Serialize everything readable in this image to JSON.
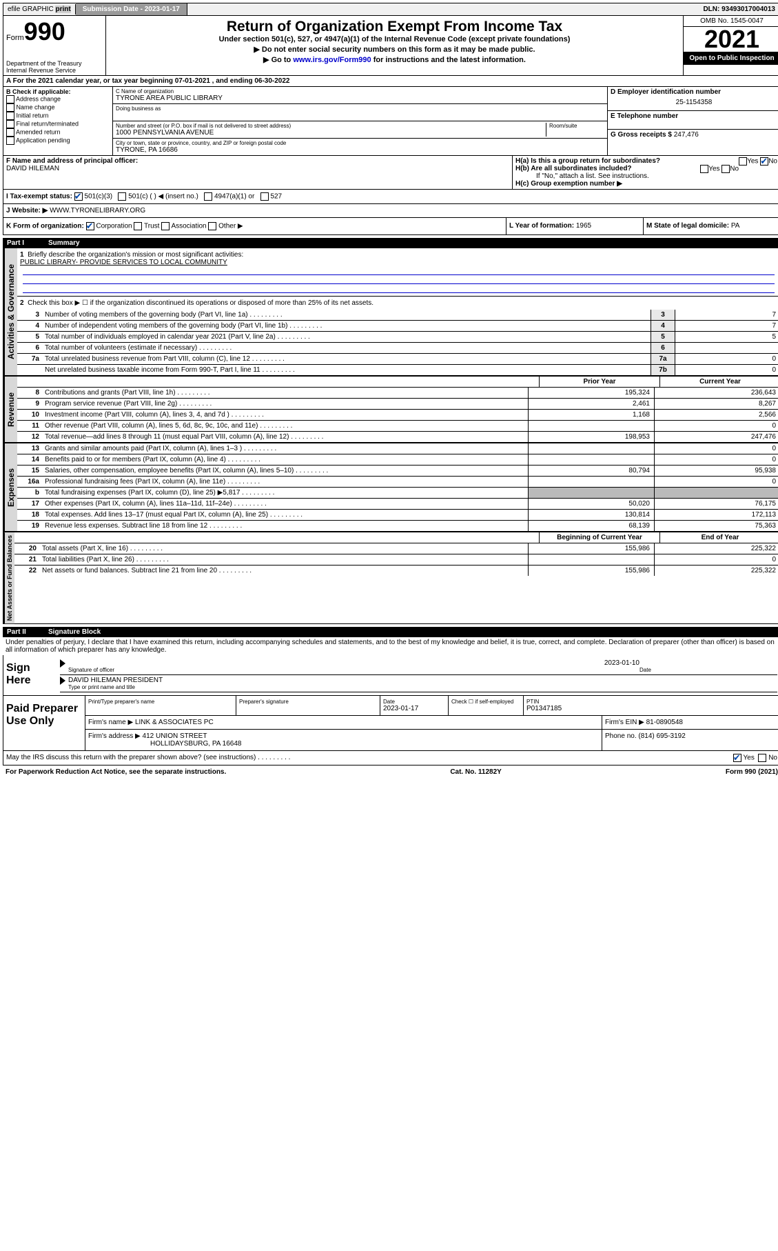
{
  "top": {
    "efile": "efile GRAPHIC",
    "print": "print",
    "sub_label": "Submission Date - ",
    "sub_date": "2023-01-17",
    "dln_label": "DLN: ",
    "dln": "93493017004013"
  },
  "header": {
    "form_small": "Form",
    "form_big": "990",
    "dept": "Department of the Treasury",
    "irs": "Internal Revenue Service",
    "title": "Return of Organization Exempt From Income Tax",
    "sub": "Under section 501(c), 527, or 4947(a)(1) of the Internal Revenue Code (except private foundations)",
    "instr1": "▶ Do not enter social security numbers on this form as it may be made public.",
    "instr2_pre": "▶ Go to ",
    "instr2_link": "www.irs.gov/Form990",
    "instr2_post": " for instructions and the latest information.",
    "omb": "OMB No. 1545-0047",
    "year": "2021",
    "open": "Open to Public Inspection"
  },
  "period": {
    "a": "A For the 2021 calendar year, or tax year beginning ",
    "begin": "07-01-2021",
    "mid": " , and ending ",
    "end": "06-30-2022"
  },
  "b": {
    "header": "B Check if applicable:",
    "opts": [
      "Address change",
      "Name change",
      "Initial return",
      "Final return/terminated",
      "Amended return",
      "Application pending"
    ]
  },
  "c": {
    "name_label": "C Name of organization",
    "name": "TYRONE AREA PUBLIC LIBRARY",
    "dba_label": "Doing business as",
    "addr_label": "Number and street (or P.O. box if mail is not delivered to street address)",
    "room_label": "Room/suite",
    "addr": "1000 PENNSYLVANIA AVENUE",
    "city_label": "City or town, state or province, country, and ZIP or foreign postal code",
    "city": "TYRONE, PA  16686"
  },
  "d": {
    "ein_label": "D Employer identification number",
    "ein": "25-1154358",
    "tel_label": "E Telephone number",
    "gross_label": "G Gross receipts $ ",
    "gross": "247,476"
  },
  "f": {
    "label": "F Name and address of principal officer:",
    "name": "DAVID HILEMAN"
  },
  "h": {
    "a": "H(a)  Is this a group return for subordinates?",
    "b": "H(b)  Are all subordinates included?",
    "b_note": "If \"No,\" attach a list. See instructions.",
    "c": "H(c)  Group exemption number ▶",
    "yes": "Yes",
    "no": "No"
  },
  "i": {
    "label": "I    Tax-exempt status:",
    "o1": "501(c)(3)",
    "o2": "501(c) (  ) ◀ (insert no.)",
    "o3": "4947(a)(1) or",
    "o4": "527"
  },
  "j": {
    "label": "J    Website: ▶  ",
    "val": "WWW.TYRONELIBRARY.ORG"
  },
  "k": {
    "label": "K Form of organization:",
    "o1": "Corporation",
    "o2": "Trust",
    "o3": "Association",
    "o4": "Other ▶"
  },
  "l": {
    "label": "L Year of formation: ",
    "val": "1965"
  },
  "m": {
    "label": "M State of legal domicile: ",
    "val": "PA"
  },
  "parts": {
    "p1": "Part I",
    "p1_title": "Summary",
    "p2": "Part II",
    "p2_title": "Signature Block"
  },
  "summary": {
    "q1": "Briefly describe the organization's mission or most significant activities:",
    "q1_val": "PUBLIC LIBRARY- PROVIDE SERVICES TO LOCAL COMMUNITY",
    "q2": "Check this box ▶ ☐  if the organization discontinued its operations or disposed of more than 25% of its net assets.",
    "rows_gov": [
      {
        "n": "3",
        "t": "Number of voting members of the governing body (Part VI, line 1a)",
        "box": "3",
        "v": "7"
      },
      {
        "n": "4",
        "t": "Number of independent voting members of the governing body (Part VI, line 1b)",
        "box": "4",
        "v": "7"
      },
      {
        "n": "5",
        "t": "Total number of individuals employed in calendar year 2021 (Part V, line 2a)",
        "box": "5",
        "v": "5"
      },
      {
        "n": "6",
        "t": "Total number of volunteers (estimate if necessary)",
        "box": "6",
        "v": ""
      },
      {
        "n": "7a",
        "t": "Total unrelated business revenue from Part VIII, column (C), line 12",
        "box": "7a",
        "v": "0"
      },
      {
        "n": "",
        "t": "Net unrelated business taxable income from Form 990-T, Part I, line 11",
        "box": "7b",
        "v": "0"
      }
    ],
    "prior": "Prior Year",
    "current": "Current Year",
    "rev_rows": [
      {
        "n": "8",
        "t": "Contributions and grants (Part VIII, line 1h)",
        "p": "195,324",
        "c": "236,643"
      },
      {
        "n": "9",
        "t": "Program service revenue (Part VIII, line 2g)",
        "p": "2,461",
        "c": "8,267"
      },
      {
        "n": "10",
        "t": "Investment income (Part VIII, column (A), lines 3, 4, and 7d )",
        "p": "1,168",
        "c": "2,566"
      },
      {
        "n": "11",
        "t": "Other revenue (Part VIII, column (A), lines 5, 6d, 8c, 9c, 10c, and 11e)",
        "p": "",
        "c": "0"
      },
      {
        "n": "12",
        "t": "Total revenue—add lines 8 through 11 (must equal Part VIII, column (A), line 12)",
        "p": "198,953",
        "c": "247,476"
      }
    ],
    "exp_rows": [
      {
        "n": "13",
        "t": "Grants and similar amounts paid (Part IX, column (A), lines 1–3 )",
        "p": "",
        "c": "0"
      },
      {
        "n": "14",
        "t": "Benefits paid to or for members (Part IX, column (A), line 4)",
        "p": "",
        "c": "0"
      },
      {
        "n": "15",
        "t": "Salaries, other compensation, employee benefits (Part IX, column (A), lines 5–10)",
        "p": "80,794",
        "c": "95,938"
      },
      {
        "n": "16a",
        "t": "Professional fundraising fees (Part IX, column (A), line 11e)",
        "p": "",
        "c": "0"
      },
      {
        "n": "b",
        "t": "Total fundraising expenses (Part IX, column (D), line 25) ▶5,817",
        "p": "GRAY",
        "c": "GRAY"
      },
      {
        "n": "17",
        "t": "Other expenses (Part IX, column (A), lines 11a–11d, 11f–24e)",
        "p": "50,020",
        "c": "76,175"
      },
      {
        "n": "18",
        "t": "Total expenses. Add lines 13–17 (must equal Part IX, column (A), line 25)",
        "p": "130,814",
        "c": "172,113"
      },
      {
        "n": "19",
        "t": "Revenue less expenses. Subtract line 18 from line 12",
        "p": "68,139",
        "c": "75,363"
      }
    ],
    "begin": "Beginning of Current Year",
    "end": "End of Year",
    "na_rows": [
      {
        "n": "20",
        "t": "Total assets (Part X, line 16)",
        "p": "155,986",
        "c": "225,322"
      },
      {
        "n": "21",
        "t": "Total liabilities (Part X, line 26)",
        "p": "",
        "c": "0"
      },
      {
        "n": "22",
        "t": "Net assets or fund balances. Subtract line 21 from line 20",
        "p": "155,986",
        "c": "225,322"
      }
    ]
  },
  "labels": {
    "gov": "Activities & Governance",
    "rev": "Revenue",
    "exp": "Expenses",
    "na": "Net Assets or Fund Balances"
  },
  "sig": {
    "penalties": "Under penalties of perjury, I declare that I have examined this return, including accompanying schedules and statements, and to the best of my knowledge and belief, it is true, correct, and complete. Declaration of preparer (other than officer) is based on all information of which preparer has any knowledge.",
    "sign_here": "Sign Here",
    "sig_officer": "Signature of officer",
    "date": "Date",
    "sig_date": "2023-01-10",
    "name_title": "DAVID HILEMAN  PRESIDENT",
    "type_name": "Type or print name and title"
  },
  "prep": {
    "label": "Paid Preparer Use Only",
    "h1": "Print/Type preparer's name",
    "h2": "Preparer's signature",
    "h3": "Date",
    "h3_val": "2023-01-17",
    "h4_check": "Check ☐ if self-employed",
    "h5": "PTIN",
    "ptin": "P01347185",
    "firm_name_l": "Firm's name    ▶ ",
    "firm_name": "LINK & ASSOCIATES PC",
    "firm_ein_l": "Firm's EIN ▶ ",
    "firm_ein": "81-0890548",
    "firm_addr_l": "Firm's address ▶ ",
    "firm_addr1": "412 UNION STREET",
    "firm_addr2": "HOLLIDAYSBURG, PA  16648",
    "phone_l": "Phone no. ",
    "phone": "(814) 695-3192"
  },
  "discuss": {
    "q": "May the IRS discuss this return with the preparer shown above? (see instructions)",
    "yes": "Yes",
    "no": "No"
  },
  "footer": {
    "l": "For Paperwork Reduction Act Notice, see the separate instructions.",
    "c": "Cat. No. 11282Y",
    "r": "Form 990 (2021)"
  }
}
